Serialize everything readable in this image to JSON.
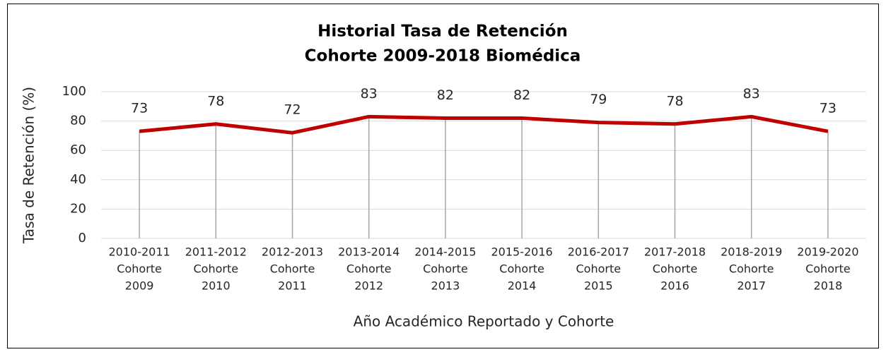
{
  "chart_data": {
    "type": "line",
    "title": [
      "Historial Tasa de Retención",
      "Cohorte 2009-2018 Biomédica"
    ],
    "xlabel": "Año Académico Reportado y Cohorte",
    "ylabel": "Tasa de Retención (%)",
    "categories": [
      [
        "2010-2011",
        "Cohorte",
        "2009"
      ],
      [
        "2011-2012",
        "Cohorte",
        "2010"
      ],
      [
        "2012-2013",
        "Cohorte",
        "2011"
      ],
      [
        "2013-2014",
        "Cohorte",
        "2012"
      ],
      [
        "2014-2015",
        "Cohorte",
        "2013"
      ],
      [
        "2015-2016",
        "Cohorte",
        "2014"
      ],
      [
        "2016-2017",
        "Cohorte",
        "2015"
      ],
      [
        "2017-2018",
        "Cohorte",
        "2016"
      ],
      [
        "2018-2019",
        "Cohorte",
        "2017"
      ],
      [
        "2019-2020",
        "Cohorte",
        "2018"
      ]
    ],
    "values": [
      73,
      78,
      72,
      83,
      82,
      82,
      79,
      78,
      83,
      73
    ],
    "color": "#c00000",
    "ylim": [
      0,
      100
    ],
    "yticks": [
      0,
      20,
      40,
      60,
      80,
      100
    ],
    "grid": true,
    "drop_lines": true
  }
}
